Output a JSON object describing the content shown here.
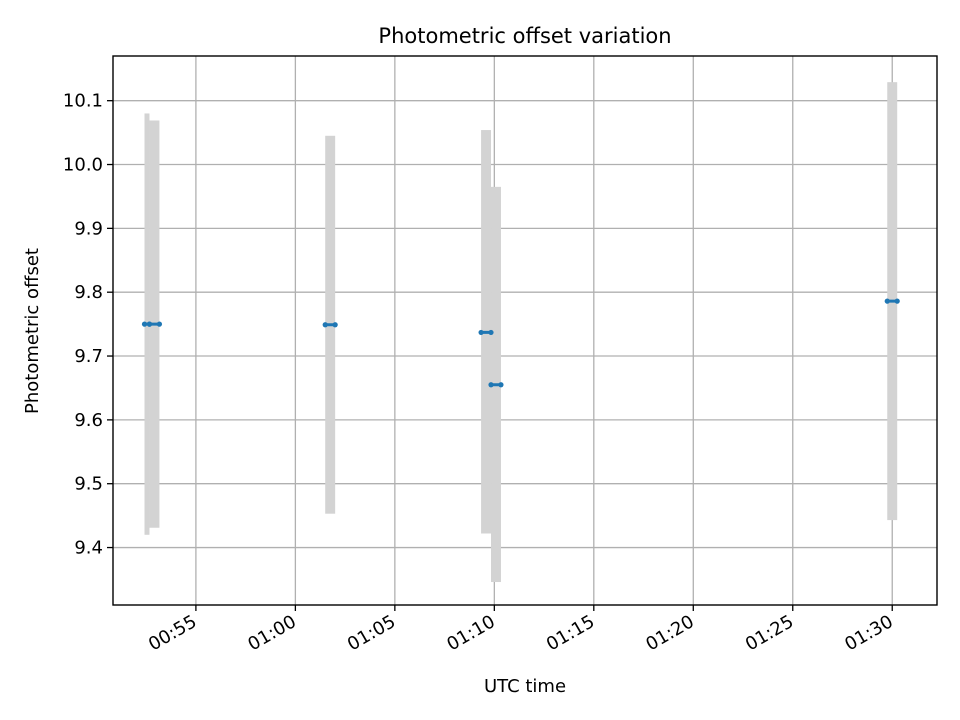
{
  "chart_data": {
    "type": "scatter",
    "title": "Photometric offset variation",
    "xlabel": "UTC time",
    "ylabel": "Photometric offset",
    "xlim": [
      "00:50:50",
      "01:32:15"
    ],
    "ylim": [
      9.31,
      10.17
    ],
    "grid": true,
    "x_ticks": [
      "00:55",
      "01:00",
      "01:05",
      "01:10",
      "01:15",
      "01:20",
      "01:25",
      "01:30"
    ],
    "y_ticks": [
      "9.4",
      "9.5",
      "9.6",
      "9.7",
      "9.8",
      "9.9",
      "10.0",
      "10.1"
    ],
    "points": [
      {
        "x_start": "00:52:25",
        "x_end": "00:52:40",
        "y": 9.75,
        "y_low": 9.42,
        "y_high": 10.08
      },
      {
        "x_start": "00:52:40",
        "x_end": "00:53:10",
        "y": 9.75,
        "y_low": 9.431,
        "y_high": 10.069
      },
      {
        "x_start": "01:01:30",
        "x_end": "01:02:00",
        "y": 9.749,
        "y_low": 9.453,
        "y_high": 10.045
      },
      {
        "x_start": "01:09:20",
        "x_end": "01:09:50",
        "y": 9.737,
        "y_low": 9.422,
        "y_high": 10.054
      },
      {
        "x_start": "01:09:50",
        "x_end": "01:10:20",
        "y": 9.655,
        "y_low": 9.346,
        "y_high": 9.965
      },
      {
        "x_start": "01:29:45",
        "x_end": "01:30:15",
        "y": 9.786,
        "y_low": 9.443,
        "y_high": 10.129
      }
    ],
    "colors": {
      "marker": "#1f77b4",
      "errorbar": "#d3d3d3",
      "grid": "#b0b0b0"
    }
  }
}
